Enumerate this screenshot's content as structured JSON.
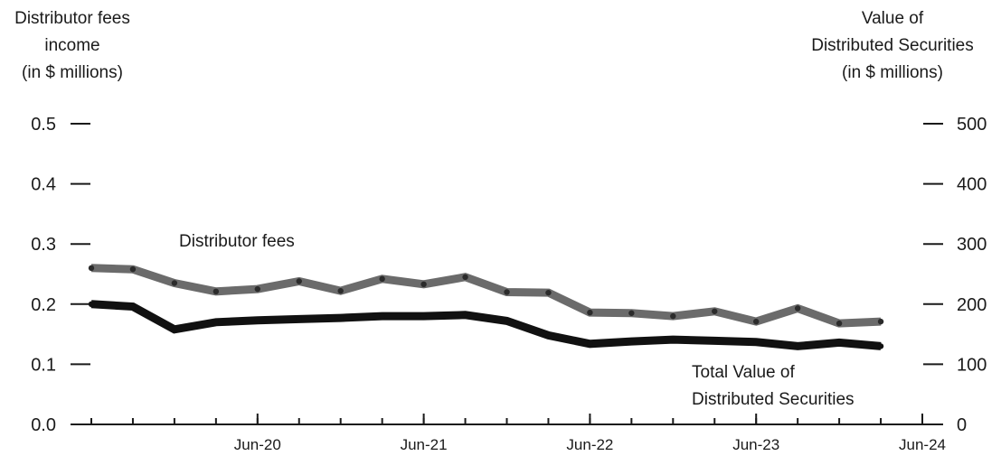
{
  "chart_data": {
    "type": "line",
    "left_axis": {
      "title_lines": [
        "Distributor fees",
        "income",
        "(in $ millions)"
      ],
      "ylim": [
        0,
        0.5
      ],
      "ticks": [
        "0.0",
        "0.1",
        "0.2",
        "0.3",
        "0.4",
        "0.5"
      ]
    },
    "right_axis": {
      "title_lines": [
        "Value of",
        "Distributed Securities",
        "(in $ millions)"
      ],
      "ylim": [
        0,
        500
      ],
      "ticks": [
        "0",
        "100",
        "200",
        "300",
        "400",
        "500"
      ]
    },
    "x_tick_labels": [
      "Jun-20",
      "Jun-21",
      "Jun-22",
      "Jun-23",
      "Jun-24"
    ],
    "x_tick_positions": [
      4,
      8,
      12,
      16,
      20
    ],
    "x_count": 21,
    "series": [
      {
        "name": "Distributor fees",
        "axis": "left",
        "color": "#6b6b6b",
        "annotation_lines": [
          "Distributor fees"
        ],
        "values": [
          0.26,
          0.258,
          0.235,
          0.221,
          0.225,
          0.238,
          0.222,
          0.242,
          0.233,
          0.245,
          0.22,
          0.219,
          0.186,
          0.185,
          0.18,
          0.188,
          0.171,
          0.193,
          0.168,
          0.171
        ]
      },
      {
        "name": "Total Value of Distributed Securities",
        "axis": "right",
        "color": "#111111",
        "annotation_lines": [
          "Total Value of",
          "Distributed Securities"
        ],
        "values": [
          200,
          196,
          158,
          170,
          173,
          175,
          177,
          180,
          180,
          182,
          172,
          148,
          134,
          138,
          141,
          139,
          137,
          130,
          136,
          130
        ]
      }
    ]
  }
}
